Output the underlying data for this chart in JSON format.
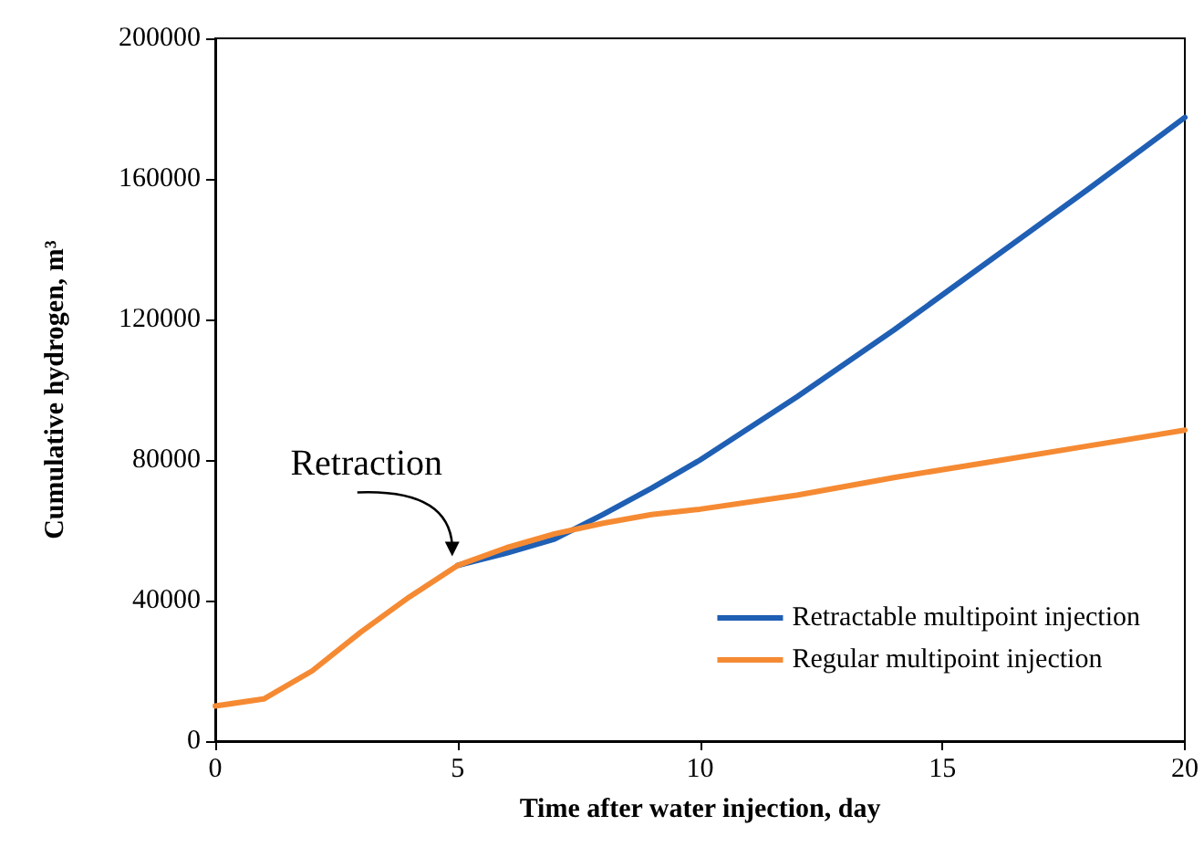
{
  "chart_data": {
    "type": "line",
    "xlabel": "Time after water injection, day",
    "ylabel": "Cumulative hydrogen, m³",
    "xlim": [
      0,
      20
    ],
    "xticks": [
      0,
      5,
      10,
      15,
      20
    ],
    "ylim": [
      0,
      200000
    ],
    "yticks": [
      0,
      40000,
      80000,
      120000,
      160000,
      200000
    ],
    "grid": false,
    "legend": "bottom right",
    "marker": "none",
    "line_style": "solid",
    "annotations": [
      {
        "text": "Retraction",
        "x": 5,
        "y": 50000
      }
    ],
    "series": [
      {
        "name": "Retractable multipoint injection",
        "color": "#1f5fb4",
        "x": [
          5,
          6,
          7,
          8,
          9,
          10,
          12,
          14,
          16,
          18,
          20
        ],
        "values": [
          50000,
          53500,
          57500,
          64500,
          72000,
          80000,
          98000,
          117000,
          137000,
          157000,
          177500
        ]
      },
      {
        "name": "Regular multipoint injection",
        "color": "#f58a33",
        "x": [
          0,
          1,
          2,
          3,
          4,
          5,
          6,
          7,
          8,
          9,
          10,
          12,
          14,
          16,
          18,
          20
        ],
        "values": [
          10000,
          12000,
          20000,
          31000,
          41000,
          50000,
          55000,
          59000,
          62000,
          64500,
          66000,
          70000,
          75000,
          79500,
          84000,
          88500
        ]
      }
    ]
  }
}
